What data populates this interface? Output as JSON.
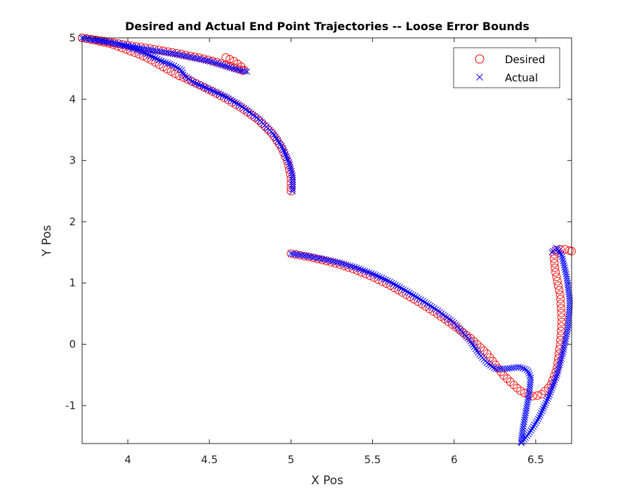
{
  "chart_data": {
    "type": "scatter",
    "title": "Desired and Actual End Point Trajectories -- Loose Error Bounds",
    "xlabel": "X Pos",
    "ylabel": "Y Pos",
    "xlim": [
      3.72,
      6.72
    ],
    "ylim": [
      -1.62,
      5.0
    ],
    "xticks": [
      4,
      4.5,
      5,
      5.5,
      6,
      6.5
    ],
    "xtick_labels": [
      "4",
      "4.5",
      "5",
      "5.5",
      "6",
      "6.5"
    ],
    "yticks": [
      -1,
      0,
      1,
      2,
      3,
      4,
      5
    ],
    "ytick_labels": [
      "-1",
      "0",
      "1",
      "2",
      "3",
      "4",
      "5"
    ],
    "grid": false,
    "legend_position": "top-right",
    "series": [
      {
        "name": "Desired",
        "marker": "o",
        "color": "#ff0000",
        "segments": [
          [
            [
              3.72,
              5.0
            ],
            [
              3.8,
              4.96
            ],
            [
              3.9,
              4.9
            ],
            [
              4.0,
              4.8
            ],
            [
              4.08,
              4.72
            ],
            [
              4.15,
              4.63
            ],
            [
              4.22,
              4.52
            ],
            [
              4.3,
              4.4
            ],
            [
              4.4,
              4.28
            ],
            [
              4.5,
              4.15
            ],
            [
              4.6,
              4.01
            ],
            [
              4.7,
              3.85
            ],
            [
              4.8,
              3.66
            ],
            [
              4.88,
              3.45
            ],
            [
              4.94,
              3.22
            ],
            [
              4.98,
              2.97
            ],
            [
              5.0,
              2.72
            ],
            [
              5.0,
              2.5
            ]
          ],
          [
            [
              3.72,
              5.0
            ],
            [
              3.85,
              4.95
            ],
            [
              4.0,
              4.88
            ],
            [
              4.15,
              4.82
            ],
            [
              4.3,
              4.75
            ],
            [
              4.45,
              4.67
            ],
            [
              4.58,
              4.58
            ],
            [
              4.67,
              4.5
            ],
            [
              4.72,
              4.45
            ],
            [
              4.7,
              4.52
            ],
            [
              4.65,
              4.62
            ],
            [
              4.6,
              4.68
            ]
          ],
          [
            [
              5.0,
              1.48
            ],
            [
              5.1,
              1.43
            ],
            [
              5.2,
              1.37
            ],
            [
              5.3,
              1.3
            ],
            [
              5.4,
              1.21
            ],
            [
              5.5,
              1.1
            ],
            [
              5.6,
              0.97
            ],
            [
              5.7,
              0.82
            ],
            [
              5.8,
              0.66
            ],
            [
              5.9,
              0.49
            ],
            [
              6.0,
              0.3
            ],
            [
              6.1,
              0.1
            ],
            [
              6.2,
              -0.15
            ],
            [
              6.3,
              -0.5
            ],
            [
              6.4,
              -0.75
            ],
            [
              6.47,
              -0.85
            ],
            [
              6.53,
              -0.83
            ],
            [
              6.59,
              -0.68
            ],
            [
              6.63,
              -0.4
            ],
            [
              6.65,
              0.0
            ],
            [
              6.66,
              0.4
            ],
            [
              6.65,
              0.8
            ],
            [
              6.62,
              1.2
            ],
            [
              6.61,
              1.45
            ],
            [
              6.63,
              1.55
            ],
            [
              6.68,
              1.55
            ],
            [
              6.72,
              1.52
            ]
          ]
        ]
      },
      {
        "name": "Actual",
        "marker": "x",
        "color": "#0000ff",
        "segments": [
          [
            [
              3.72,
              5.0
            ],
            [
              3.85,
              4.95
            ],
            [
              4.0,
              4.86
            ],
            [
              4.1,
              4.76
            ],
            [
              4.2,
              4.63
            ],
            [
              4.28,
              4.55
            ],
            [
              4.33,
              4.47
            ],
            [
              4.34,
              4.4
            ],
            [
              4.4,
              4.28
            ],
            [
              4.5,
              4.16
            ],
            [
              4.6,
              4.04
            ],
            [
              4.7,
              3.88
            ],
            [
              4.8,
              3.68
            ],
            [
              4.89,
              3.44
            ],
            [
              4.95,
              3.2
            ],
            [
              4.99,
              2.95
            ],
            [
              5.01,
              2.75
            ],
            [
              5.01,
              2.5
            ]
          ],
          [
            [
              3.72,
              5.0
            ],
            [
              3.9,
              4.92
            ],
            [
              4.1,
              4.82
            ],
            [
              4.3,
              4.73
            ],
            [
              4.5,
              4.62
            ],
            [
              4.62,
              4.52
            ],
            [
              4.7,
              4.46
            ],
            [
              4.73,
              4.45
            ]
          ],
          [
            [
              5.0,
              1.48
            ],
            [
              5.1,
              1.44
            ],
            [
              5.2,
              1.39
            ],
            [
              5.3,
              1.33
            ],
            [
              5.4,
              1.25
            ],
            [
              5.5,
              1.15
            ],
            [
              5.6,
              1.03
            ],
            [
              5.7,
              0.88
            ],
            [
              5.8,
              0.72
            ],
            [
              5.9,
              0.55
            ],
            [
              6.0,
              0.35
            ],
            [
              6.1,
              0.05
            ],
            [
              6.15,
              -0.15
            ],
            [
              6.2,
              -0.3
            ],
            [
              6.25,
              -0.4
            ],
            [
              6.32,
              -0.4
            ],
            [
              6.4,
              -0.37
            ],
            [
              6.45,
              -0.42
            ],
            [
              6.47,
              -0.55
            ],
            [
              6.46,
              -0.8
            ],
            [
              6.44,
              -1.1
            ],
            [
              6.42,
              -1.4
            ],
            [
              6.41,
              -1.62
            ],
            [
              6.46,
              -1.45
            ],
            [
              6.52,
              -1.2
            ],
            [
              6.58,
              -0.85
            ],
            [
              6.63,
              -0.5
            ],
            [
              6.67,
              -0.1
            ],
            [
              6.7,
              0.3
            ],
            [
              6.71,
              0.7
            ],
            [
              6.69,
              1.1
            ],
            [
              6.66,
              1.45
            ],
            [
              6.63,
              1.58
            ],
            [
              6.6,
              1.5
            ]
          ]
        ]
      }
    ]
  }
}
